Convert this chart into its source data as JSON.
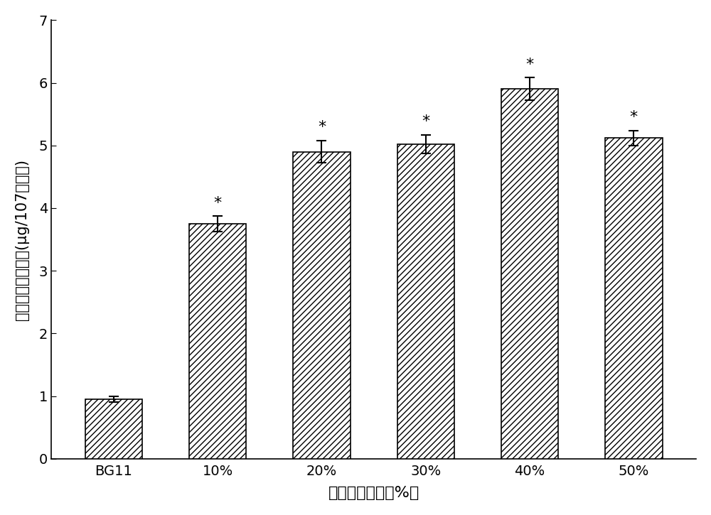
{
  "categories": [
    "BG11",
    "10%",
    "20%",
    "30%",
    "40%",
    "50%"
  ],
  "values": [
    0.95,
    3.75,
    4.9,
    5.02,
    5.9,
    5.12
  ],
  "errors": [
    0.05,
    0.12,
    0.18,
    0.15,
    0.18,
    0.12
  ],
  "bar_color": "#ffffff",
  "bar_edgecolor": "#000000",
  "hatch": "////",
  "star_labels": [
    false,
    true,
    true,
    true,
    true,
    true
  ],
  "ylim": [
    0,
    7
  ],
  "yticks": [
    0,
    1,
    2,
    3,
    4,
    5,
    6,
    7
  ],
  "ylabel_part1": "小球藻的蛋白含量",
  "ylabel_part2": "(μg/10",
  "ylabel_part3": "7",
  "ylabel_part4": "个细胞)",
  "xlabel": "缫丝废水比例（%）",
  "background_color": "#ffffff",
  "bar_width": 0.55,
  "figsize": [
    10.0,
    7.25
  ],
  "dpi": 100,
  "errorbar_capsize": 5,
  "errorbar_linewidth": 1.5,
  "errorbar_color": "#000000",
  "star_fontsize": 16,
  "axis_fontsize": 16,
  "tick_fontsize": 14,
  "ylabel_fontsize": 15
}
